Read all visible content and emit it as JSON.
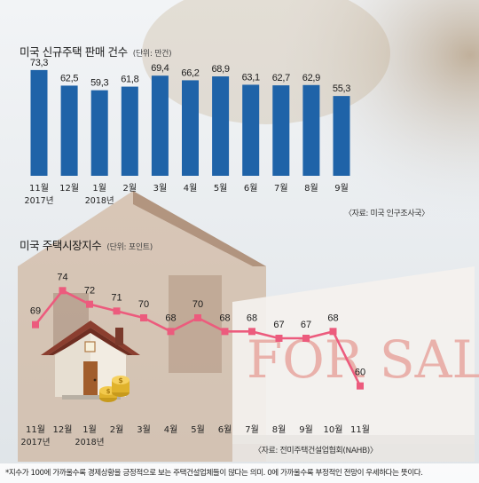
{
  "chart_data": [
    {
      "type": "bar",
      "title": "미국 신규주택 판매 건수",
      "unit": "(단위: 만건)",
      "categories": [
        "11월",
        "12월",
        "1월",
        "2월",
        "3월",
        "4월",
        "5월",
        "6월",
        "7월",
        "8월",
        "9월"
      ],
      "year_labels": [
        {
          "index": 0,
          "label": "2017년"
        },
        {
          "index": 2,
          "label": "2018년"
        }
      ],
      "values": [
        73.3,
        62.5,
        59.3,
        61.8,
        69.4,
        66.2,
        68.9,
        63.1,
        62.7,
        62.9,
        55.3
      ],
      "value_labels": [
        "73,3",
        "62,5",
        "59,3",
        "61,8",
        "69,4",
        "66,2",
        "68,9",
        "63,1",
        "62,7",
        "62,9",
        "55,3"
      ],
      "ylim": [
        0,
        80
      ],
      "bar_color": "#1f63a8",
      "source": "〈자료: 미국 인구조사국〉"
    },
    {
      "type": "line",
      "title": "미국 주택시장지수",
      "unit": "(단위: 포인트)",
      "categories": [
        "11월",
        "12월",
        "1월",
        "2월",
        "3월",
        "4월",
        "5월",
        "6월",
        "7월",
        "8월",
        "9월",
        "10월",
        "11월"
      ],
      "year_labels": [
        {
          "index": 0,
          "label": "2017년"
        },
        {
          "index": 2,
          "label": "2018년"
        }
      ],
      "values": [
        69,
        74,
        72,
        71,
        70,
        68,
        70,
        68,
        68,
        67,
        67,
        68,
        60
      ],
      "ylim": [
        58,
        76
      ],
      "line_color": "#ec5b7d",
      "source": "〈자료: 전미주택건설업협회(NAHB)〉"
    }
  ],
  "footnote": "*지수가 100에 가까울수록 경제상황을 긍정적으로 보는 주택건설업체들이 많다는 의미. 0에 가까울수록 부정적인 전망이 우세하다는 뜻이다."
}
